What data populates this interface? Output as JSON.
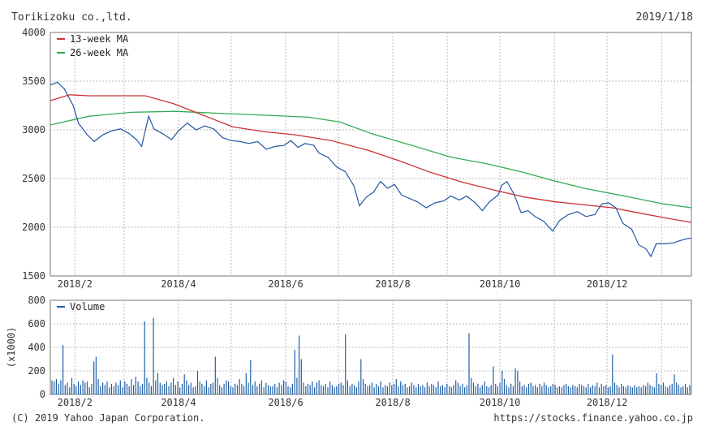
{
  "header": {
    "company": "Torikizoku co.,ltd.",
    "date": "2019/1/18"
  },
  "footer": {
    "copyright": "(C) 2019 Yahoo Japan Corporation.",
    "source": "https://stocks.finance.yahoo.co.jp"
  },
  "colors": {
    "price": "#2255a0",
    "ma13": "#cc3333",
    "ma26": "#33aa55",
    "volume": "#1f5fa8",
    "grid": "#bbbbbb",
    "frame": "#777777"
  },
  "chart_data": [
    {
      "type": "line",
      "x_start": "2018-01-18",
      "x_end": "2019-01-18",
      "xticks": [
        "2018/2",
        "2018/4",
        "2018/6",
        "2018/8",
        "2018/10",
        "2018/12"
      ],
      "ylim": [
        1500,
        4000
      ],
      "yticks": [
        1500,
        2000,
        2500,
        3000,
        3500,
        4000
      ],
      "grid": true,
      "legend_position": "top-left",
      "series": [
        {
          "name": "",
          "color": "#2255a0",
          "points": [
            [
              "2018-01-18",
              3460
            ],
            [
              "2018-01-22",
              3490
            ],
            [
              "2018-01-26",
              3420
            ],
            [
              "2018-01-31",
              3250
            ],
            [
              "2018-02-03",
              3070
            ],
            [
              "2018-02-08",
              2950
            ],
            [
              "2018-02-12",
              2880
            ],
            [
              "2018-02-17",
              2950
            ],
            [
              "2018-02-22",
              2990
            ],
            [
              "2018-02-27",
              3010
            ],
            [
              "2018-03-04",
              2960
            ],
            [
              "2018-03-08",
              2900
            ],
            [
              "2018-03-11",
              2830
            ],
            [
              "2018-03-15",
              3140
            ],
            [
              "2018-03-18",
              3010
            ],
            [
              "2018-03-23",
              2960
            ],
            [
              "2018-03-28",
              2900
            ],
            [
              "2018-04-01",
              2990
            ],
            [
              "2018-04-06",
              3070
            ],
            [
              "2018-04-11",
              3000
            ],
            [
              "2018-04-16",
              3040
            ],
            [
              "2018-04-21",
              3010
            ],
            [
              "2018-04-26",
              2920
            ],
            [
              "2018-05-01",
              2890
            ],
            [
              "2018-05-06",
              2880
            ],
            [
              "2018-05-11",
              2860
            ],
            [
              "2018-05-16",
              2880
            ],
            [
              "2018-05-21",
              2800
            ],
            [
              "2018-05-26",
              2830
            ],
            [
              "2018-05-31",
              2840
            ],
            [
              "2018-06-04",
              2890
            ],
            [
              "2018-06-08",
              2820
            ],
            [
              "2018-06-12",
              2860
            ],
            [
              "2018-06-17",
              2840
            ],
            [
              "2018-06-20",
              2760
            ],
            [
              "2018-06-25",
              2720
            ],
            [
              "2018-06-30",
              2620
            ],
            [
              "2018-07-05",
              2570
            ],
            [
              "2018-07-10",
              2420
            ],
            [
              "2018-07-13",
              2220
            ],
            [
              "2018-07-17",
              2310
            ],
            [
              "2018-07-21",
              2360
            ],
            [
              "2018-07-25",
              2470
            ],
            [
              "2018-07-29",
              2400
            ],
            [
              "2018-08-02",
              2440
            ],
            [
              "2018-08-06",
              2330
            ],
            [
              "2018-08-10",
              2300
            ],
            [
              "2018-08-15",
              2260
            ],
            [
              "2018-08-20",
              2200
            ],
            [
              "2018-08-25",
              2250
            ],
            [
              "2018-08-30",
              2270
            ],
            [
              "2018-09-03",
              2320
            ],
            [
              "2018-09-08",
              2280
            ],
            [
              "2018-09-12",
              2320
            ],
            [
              "2018-09-17",
              2250
            ],
            [
              "2018-09-21",
              2170
            ],
            [
              "2018-09-25",
              2260
            ],
            [
              "2018-09-30",
              2330
            ],
            [
              "2018-10-02",
              2430
            ],
            [
              "2018-10-05",
              2470
            ],
            [
              "2018-10-09",
              2340
            ],
            [
              "2018-10-13",
              2150
            ],
            [
              "2018-10-17",
              2170
            ],
            [
              "2018-10-21",
              2110
            ],
            [
              "2018-10-26",
              2060
            ],
            [
              "2018-10-31",
              1960
            ],
            [
              "2018-11-04",
              2070
            ],
            [
              "2018-11-09",
              2130
            ],
            [
              "2018-11-14",
              2160
            ],
            [
              "2018-11-19",
              2110
            ],
            [
              "2018-11-24",
              2130
            ],
            [
              "2018-11-28",
              2240
            ],
            [
              "2018-12-02",
              2250
            ],
            [
              "2018-12-06",
              2200
            ],
            [
              "2018-12-10",
              2040
            ],
            [
              "2018-12-15",
              1980
            ],
            [
              "2018-12-19",
              1820
            ],
            [
              "2018-12-23",
              1780
            ],
            [
              "2018-12-26",
              1700
            ],
            [
              "2018-12-29",
              1830
            ],
            [
              "2019-01-03",
              1830
            ],
            [
              "2019-01-08",
              1840
            ],
            [
              "2019-01-11",
              1860
            ],
            [
              "2019-01-15",
              1880
            ],
            [
              "2019-01-18",
              1890
            ]
          ]
        },
        {
          "name": "13-week MA",
          "color": "#cc3333",
          "points": [
            [
              "2018-01-18",
              3300
            ],
            [
              "2018-01-29",
              3360
            ],
            [
              "2018-02-09",
              3350
            ],
            [
              "2018-02-28",
              3350
            ],
            [
              "2018-03-13",
              3350
            ],
            [
              "2018-03-29",
              3270
            ],
            [
              "2018-04-15",
              3150
            ],
            [
              "2018-05-02",
              3030
            ],
            [
              "2018-05-20",
              2980
            ],
            [
              "2018-06-06",
              2950
            ],
            [
              "2018-06-27",
              2890
            ],
            [
              "2018-07-18",
              2790
            ],
            [
              "2018-08-05",
              2680
            ],
            [
              "2018-08-23",
              2560
            ],
            [
              "2018-09-10",
              2460
            ],
            [
              "2018-09-28",
              2380
            ],
            [
              "2018-10-15",
              2310
            ],
            [
              "2018-11-02",
              2260
            ],
            [
              "2018-11-18",
              2230
            ],
            [
              "2018-12-04",
              2200
            ],
            [
              "2018-12-21",
              2140
            ],
            [
              "2019-01-08",
              2080
            ],
            [
              "2019-01-18",
              2050
            ]
          ]
        },
        {
          "name": "26-week MA",
          "color": "#33aa55",
          "points": [
            [
              "2018-01-18",
              3050
            ],
            [
              "2018-02-09",
              3140
            ],
            [
              "2018-03-05",
              3180
            ],
            [
              "2018-03-30",
              3190
            ],
            [
              "2018-04-24",
              3170
            ],
            [
              "2018-05-21",
              3150
            ],
            [
              "2018-06-14",
              3130
            ],
            [
              "2018-07-02",
              3080
            ],
            [
              "2018-07-20",
              2960
            ],
            [
              "2018-08-12",
              2840
            ],
            [
              "2018-09-03",
              2720
            ],
            [
              "2018-09-24",
              2650
            ],
            [
              "2018-10-13",
              2570
            ],
            [
              "2018-10-31",
              2480
            ],
            [
              "2018-11-18",
              2400
            ],
            [
              "2018-12-11",
              2320
            ],
            [
              "2019-01-02",
              2240
            ],
            [
              "2019-01-18",
              2200
            ]
          ]
        }
      ]
    },
    {
      "type": "bar",
      "x_start": "2018-01-18",
      "x_end": "2019-01-18",
      "xticks": [
        "2018/2",
        "2018/4",
        "2018/6",
        "2018/8",
        "2018/10",
        "2018/12"
      ],
      "ylim": [
        0,
        800
      ],
      "yticks": [
        0,
        200,
        400,
        600,
        800
      ],
      "ylabel": "(x1000)",
      "grid": true,
      "legend_position": "top-left",
      "series": [
        {
          "name": "Volume",
          "color": "#1f5fa8",
          "values": [
            120,
            110,
            130,
            90,
            120,
            420,
            80,
            100,
            60,
            140,
            90,
            70,
            110,
            80,
            120,
            100,
            110,
            60,
            90,
            280,
            320,
            130,
            70,
            100,
            80,
            110,
            60,
            90,
            70,
            100,
            80,
            120,
            60,
            110,
            90,
            70,
            130,
            80,
            150,
            110,
            70,
            90,
            620,
            140,
            100,
            70,
            650,
            120,
            180,
            100,
            80,
            90,
            110,
            70,
            100,
            140,
            80,
            110,
            60,
            90,
            170,
            120,
            80,
            100,
            60,
            70,
            200,
            110,
            90,
            70,
            120,
            60,
            90,
            100,
            320,
            140,
            80,
            60,
            90,
            120,
            110,
            70,
            60,
            90,
            80,
            130,
            90,
            70,
            180,
            100,
            290,
            80,
            110,
            70,
            90,
            120,
            60,
            100,
            80,
            70,
            70,
            90,
            60,
            100,
            80,
            120,
            110,
            70,
            60,
            90,
            380,
            140,
            500,
            300,
            100,
            70,
            90,
            80,
            110,
            60,
            100,
            120,
            80,
            70,
            90,
            60,
            110,
            80,
            60,
            70,
            90,
            100,
            80,
            510,
            120,
            70,
            90,
            80,
            60,
            110,
            300,
            130,
            90,
            70,
            80,
            100,
            60,
            90,
            70,
            110,
            60,
            80,
            70,
            100,
            80,
            90,
            130,
            70,
            110,
            80,
            90,
            60,
            70,
            100,
            80,
            60,
            90,
            70,
            80,
            60,
            100,
            70,
            90,
            80,
            60,
            110,
            70,
            80,
            60,
            90,
            70,
            60,
            80,
            120,
            100,
            70,
            90,
            60,
            80,
            520,
            140,
            100,
            70,
            90,
            60,
            80,
            110,
            70,
            60,
            80,
            240,
            90,
            70,
            100,
            200,
            130,
            80,
            60,
            90,
            70,
            220,
            200,
            110,
            70,
            80,
            60,
            90,
            100,
            70,
            80,
            60,
            90,
            70,
            100,
            80,
            60,
            70,
            90,
            80,
            60,
            70,
            60,
            80,
            90,
            70,
            60,
            80,
            70,
            60,
            90,
            80,
            70,
            60,
            90,
            60,
            80,
            70,
            100,
            60,
            90,
            70,
            80,
            60,
            70,
            340,
            100,
            80,
            60,
            90,
            70,
            60,
            80,
            70,
            60,
            80,
            60,
            70,
            60,
            80,
            70,
            100,
            80,
            70,
            60,
            180,
            90,
            80,
            100,
            70,
            60,
            80,
            90,
            170,
            100,
            80,
            60,
            70,
            90,
            60,
            80
          ]
        }
      ]
    }
  ]
}
